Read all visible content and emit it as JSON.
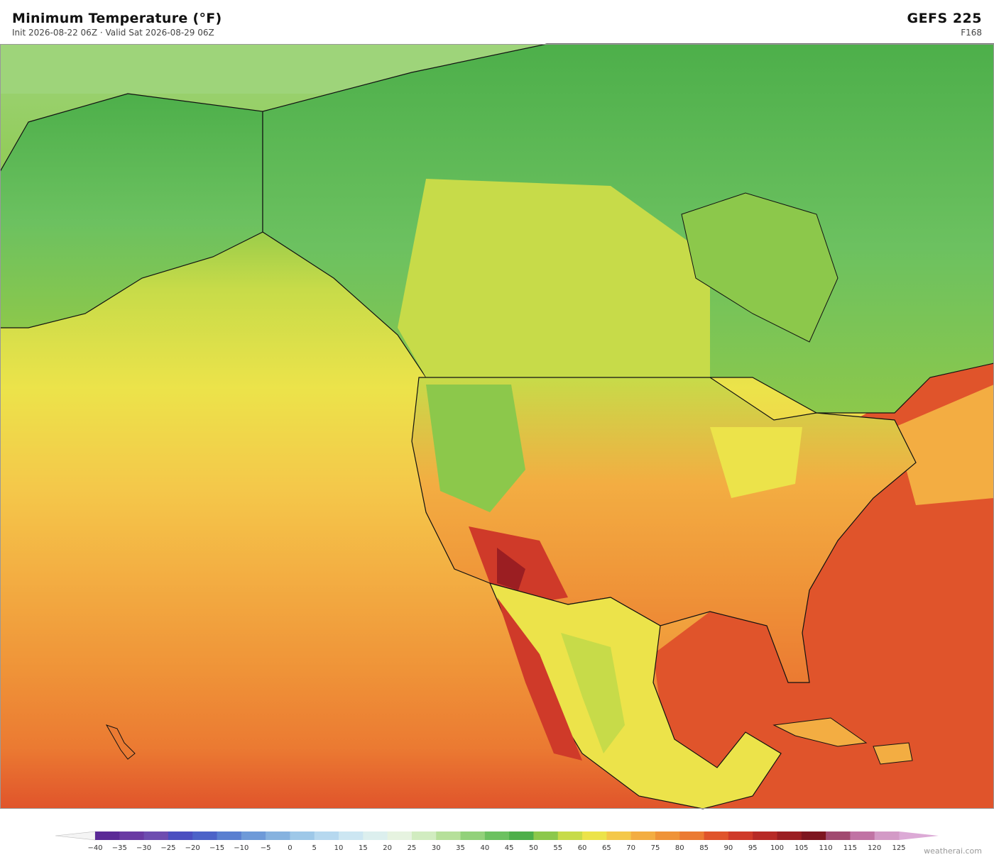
{
  "header": {
    "title": "Minimum Temperature  (°F)",
    "subtitle": "Init 2026-08-22 06Z   ·   Valid Sat 2026-08-29 06Z",
    "model": "GEFS  225",
    "forecast_hour": "F168"
  },
  "colorbar": {
    "labels": [
      "−40",
      "−35",
      "−30",
      "−25",
      "−20",
      "−15",
      "−10",
      "−5",
      "0",
      "5",
      "10",
      "15",
      "20",
      "25",
      "30",
      "35",
      "40",
      "45",
      "50",
      "55",
      "60",
      "65",
      "70",
      "75",
      "80",
      "85",
      "90",
      "95",
      "100",
      "105",
      "110",
      "115",
      "120",
      "125"
    ],
    "colors": [
      "#5b2a96",
      "#6a3aa3",
      "#6e4db0",
      "#4b4fc0",
      "#4c63c8",
      "#5a7fd0",
      "#6e9ad8",
      "#86b2df",
      "#9ec8e8",
      "#b6d8ef",
      "#cce6f2",
      "#dcefee",
      "#e6f3e0",
      "#d1ecc0",
      "#b6e09a",
      "#92d17a",
      "#6cc160",
      "#4daf4a",
      "#8cc84b",
      "#c7db49",
      "#ece34a",
      "#f4c84a",
      "#f3ad42",
      "#ef9338",
      "#eb7a32",
      "#e0542b",
      "#cf3a29",
      "#b72a26",
      "#9b1e22",
      "#7e1620",
      "#a14a70",
      "#c073a4",
      "#d39ac6"
    ],
    "under_color": "#f4f4f4",
    "over_color": "#dcaad6"
  },
  "watermark": "weatherai.com"
}
